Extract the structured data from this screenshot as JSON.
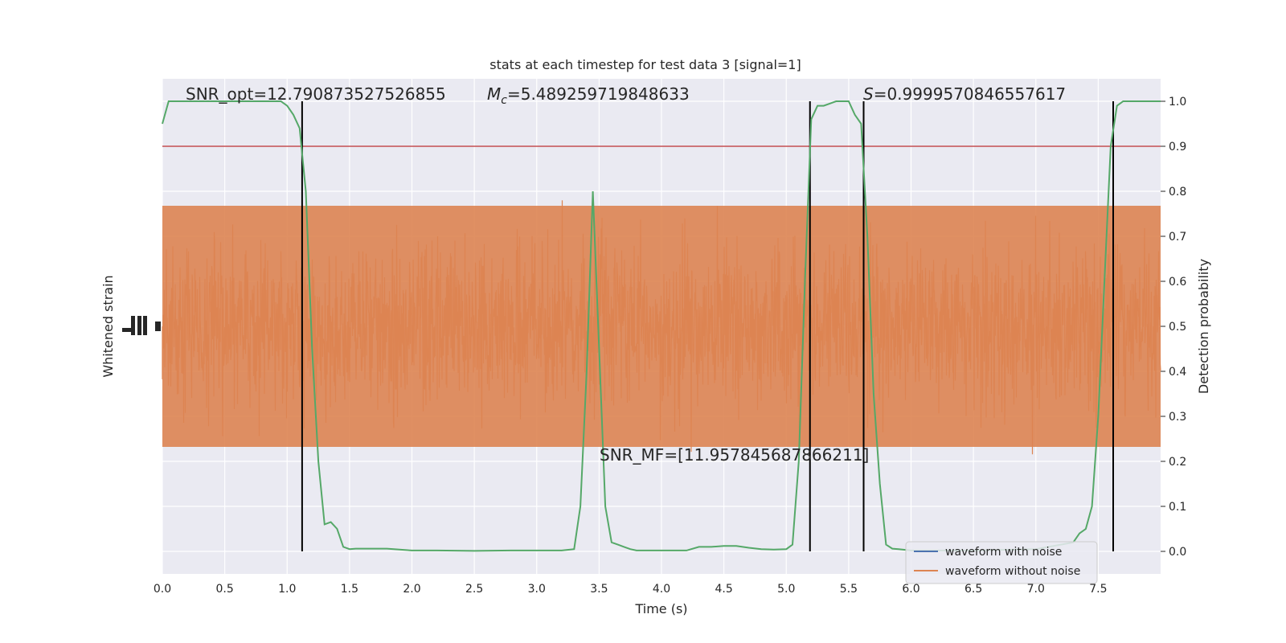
{
  "chart_data": {
    "type": "line",
    "title": "stats at each timestep for test data 3 [signal=1]",
    "xlabel": "Time (s)",
    "ylabel_left": "Whitened strain",
    "ylabel_right": "Detection probability",
    "xlim": [
      0.0,
      8.0
    ],
    "ylim_right": [
      -0.05,
      1.05
    ],
    "x_ticks": [
      "0.0",
      "0.5",
      "1.0",
      "1.5",
      "2.0",
      "2.5",
      "3.0",
      "3.5",
      "4.0",
      "4.5",
      "5.0",
      "5.5",
      "6.0",
      "6.5",
      "7.0",
      "7.5"
    ],
    "y_ticks_right": [
      "0.0",
      "0.1",
      "0.2",
      "0.3",
      "0.4",
      "0.5",
      "0.6",
      "0.7",
      "0.8",
      "0.9",
      "1.0"
    ],
    "grid": true,
    "threshold": 0.9,
    "vertical_lines": [
      1.12,
      5.19,
      5.62,
      7.62
    ],
    "annotations": {
      "snr_opt": "SNR_opt=12.790873527526855",
      "mc_symbol": "M",
      "mc_sub": "c",
      "mc_value": "=5.489259719848633",
      "s_symbol": "S",
      "s_value": "=0.9999570846557617",
      "snr_mf": "SNR_MF=[11.957845687866211]"
    },
    "legend": {
      "placement": "lower-right",
      "entries": [
        {
          "label": "waveform with noise",
          "color": "#4c72b0"
        },
        {
          "label": "waveform without noise",
          "color": "#dd8452"
        }
      ]
    },
    "series": [
      {
        "color": "#55a868",
        "x": [
          0.0,
          0.05,
          0.1,
          0.2,
          0.3,
          0.4,
          0.5,
          0.6,
          0.7,
          0.8,
          0.9,
          0.95,
          1.0,
          1.05,
          1.1,
          1.15,
          1.2,
          1.25,
          1.3,
          1.35,
          1.4,
          1.45,
          1.5,
          1.55,
          1.6,
          1.7,
          1.75,
          1.8,
          1.9,
          2.0,
          2.2,
          2.5,
          2.8,
          3.0,
          3.2,
          3.3,
          3.35,
          3.4,
          3.45,
          3.5,
          3.55,
          3.6,
          3.65,
          3.7,
          3.75,
          3.8,
          3.9,
          4.0,
          4.2,
          4.3,
          4.4,
          4.5,
          4.6,
          4.7,
          4.8,
          4.9,
          5.0,
          5.05,
          5.1,
          5.15,
          5.2,
          5.25,
          5.3,
          5.35,
          5.4,
          5.5,
          5.55,
          5.6,
          5.65,
          5.7,
          5.75,
          5.8,
          5.85,
          5.9,
          6.0,
          6.5,
          7.0,
          7.3,
          7.35,
          7.4,
          7.45,
          7.5,
          7.55,
          7.6,
          7.65,
          7.7,
          7.8,
          7.9,
          8.0
        ],
        "values": [
          0.95,
          1.0,
          1.0,
          1.0,
          1.0,
          1.0,
          1.0,
          1.0,
          1.0,
          1.0,
          1.0,
          1.0,
          0.99,
          0.97,
          0.94,
          0.8,
          0.45,
          0.2,
          0.06,
          0.065,
          0.05,
          0.01,
          0.005,
          0.006,
          0.006,
          0.006,
          0.006,
          0.006,
          0.004,
          0.002,
          0.002,
          0.001,
          0.002,
          0.002,
          0.002,
          0.005,
          0.1,
          0.4,
          0.8,
          0.45,
          0.1,
          0.02,
          0.015,
          0.01,
          0.005,
          0.002,
          0.002,
          0.002,
          0.002,
          0.01,
          0.01,
          0.012,
          0.012,
          0.008,
          0.005,
          0.004,
          0.005,
          0.015,
          0.2,
          0.6,
          0.96,
          0.99,
          0.99,
          0.995,
          1.0,
          1.0,
          0.97,
          0.95,
          0.7,
          0.35,
          0.15,
          0.015,
          0.006,
          0.005,
          0.002,
          0.002,
          0.005,
          0.02,
          0.04,
          0.05,
          0.1,
          0.3,
          0.6,
          0.9,
          0.99,
          1.0,
          1.0,
          1.0,
          1.0
        ]
      }
    ]
  }
}
